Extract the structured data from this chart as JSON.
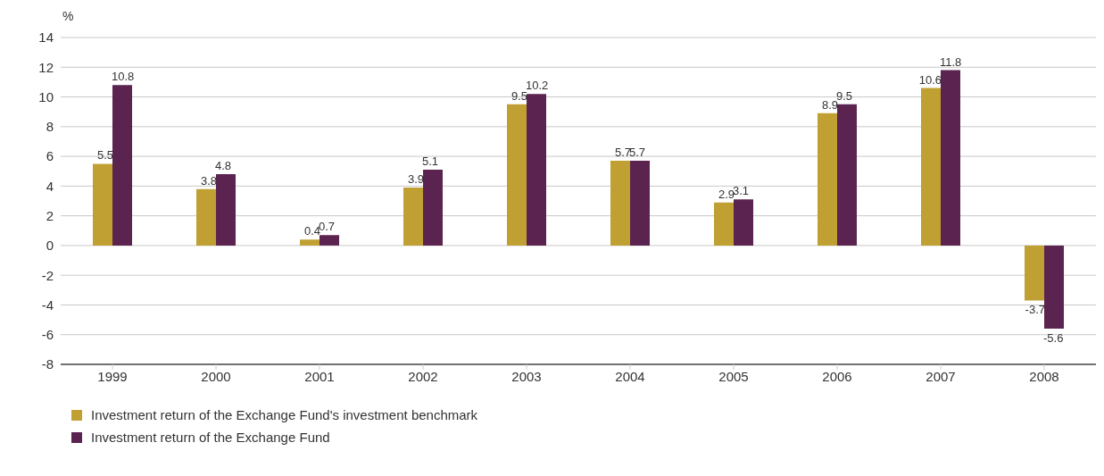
{
  "chart_data": {
    "type": "bar",
    "ylabel": "%",
    "categories": [
      "1999",
      "2000",
      "2001",
      "2002",
      "2003",
      "2004",
      "2005",
      "2006",
      "2007",
      "2008"
    ],
    "series": [
      {
        "name": "Investment return of the Exchange Fund's investment benchmark",
        "color": "#c0a032",
        "values": [
          5.5,
          3.8,
          0.4,
          3.9,
          9.5,
          5.7,
          2.9,
          8.9,
          10.6,
          -3.7
        ]
      },
      {
        "name": "Investment return of the Exchange Fund",
        "color": "#5a2350",
        "values": [
          10.8,
          4.8,
          0.7,
          5.1,
          10.2,
          5.7,
          3.1,
          9.5,
          11.8,
          -5.6
        ]
      }
    ],
    "ylim": [
      -8,
      14
    ],
    "yticks": [
      -8,
      -6,
      -4,
      -2,
      0,
      2,
      4,
      6,
      8,
      10,
      12,
      14
    ],
    "grid": "y",
    "legend": "bottom",
    "data_labels": true
  }
}
